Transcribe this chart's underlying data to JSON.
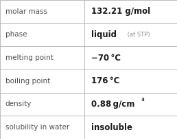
{
  "rows": [
    {
      "label": "molar mass",
      "value": "132.21 g/mol",
      "type": "plain"
    },
    {
      "label": "phase",
      "value": "liquid",
      "value_suffix": " (at STP)",
      "type": "phase"
    },
    {
      "label": "melting point",
      "value": "−70 °C",
      "type": "plain"
    },
    {
      "label": "boiling point",
      "value": "176 °C",
      "type": "plain"
    },
    {
      "label": "density",
      "value": "0.88 g/cm",
      "superscript": "3",
      "type": "super"
    },
    {
      "label": "solubility in water",
      "value": "insoluble",
      "type": "plain"
    }
  ],
  "bg_color": "#ffffff",
  "border_color": "#b0b0b0",
  "label_color": "#505050",
  "value_color": "#1a1a1a",
  "suffix_color": "#909090",
  "label_fontsize": 7.5,
  "value_fontsize": 8.5,
  "suffix_fontsize": 6.0,
  "col_split": 0.475,
  "figw": 2.58,
  "figh": 2.02,
  "dpi": 100
}
